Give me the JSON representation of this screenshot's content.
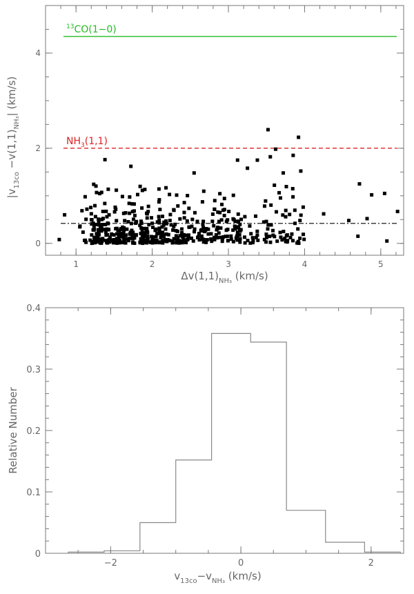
{
  "chart_data": [
    {
      "type": "scatter",
      "xlabel": {
        "main": "Δv(1,1)",
        "sub": "NH₃",
        "unit": " (km/s)"
      },
      "ylabel": {
        "l1": "|v",
        "s1": "13co",
        "m": " −v(1,1)",
        "s2": "NH₃",
        "r": "|  (km/s)"
      },
      "xlim": [
        0.6,
        5.3
      ],
      "ylim": [
        -0.25,
        5.0
      ],
      "xticks": [
        1,
        2,
        3,
        4,
        5
      ],
      "yticks": [
        0,
        2,
        4
      ],
      "reference_lines": [
        {
          "label_sup": "13",
          "label": "CO(1−0)",
          "y": 4.35,
          "color": "#22bb22",
          "style": "solid"
        },
        {
          "label": "NH",
          "label_sub": "3",
          "label_rest": "(1,1)",
          "y": 2.0,
          "color": "#dd2222",
          "style": "dashed"
        },
        {
          "y": 0.42,
          "color": "#000000",
          "style": "dashdot"
        }
      ],
      "points_seed": 20240607,
      "n_points": 520,
      "outliers": [
        [
          3.52,
          2.39
        ],
        [
          3.92,
          2.23
        ],
        [
          3.62,
          1.98
        ],
        [
          3.55,
          1.82
        ],
        [
          3.85,
          1.85
        ],
        [
          3.38,
          1.75
        ],
        [
          3.12,
          1.75
        ],
        [
          3.25,
          1.58
        ],
        [
          3.72,
          1.48
        ],
        [
          2.55,
          1.48
        ],
        [
          3.95,
          1.52
        ],
        [
          1.72,
          1.62
        ],
        [
          1.38,
          1.76
        ],
        [
          4.72,
          1.25
        ],
        [
          4.88,
          1.02
        ],
        [
          5.05,
          1.05
        ],
        [
          5.22,
          0.67
        ],
        [
          4.82,
          0.52
        ],
        [
          4.25,
          0.62
        ],
        [
          4.58,
          0.48
        ],
        [
          5.08,
          0.05
        ],
        [
          4.7,
          0.15
        ],
        [
          0.78,
          0.08
        ],
        [
          0.85,
          0.6
        ],
        [
          1.12,
          0.98
        ]
      ]
    },
    {
      "type": "histogram",
      "ylabel": "Relative Number",
      "xlabel": {
        "main": "v",
        "s1": "13co",
        "m": "−v",
        "s2": "NH₃",
        "unit": " (km/s)"
      },
      "xlim": [
        -3.0,
        2.5
      ],
      "ylim": [
        0,
        0.4
      ],
      "xticks": [
        -2,
        0,
        2
      ],
      "yticks": [
        0,
        0.1,
        0.2,
        0.3,
        0.4
      ],
      "bin_edges": [
        -2.65,
        -2.1,
        -1.55,
        -1.0,
        -0.45,
        0.15,
        0.7,
        1.3,
        1.9,
        2.45
      ],
      "values": [
        0.002,
        0.004,
        0.05,
        0.152,
        0.358,
        0.344,
        0.07,
        0.018,
        0.002
      ]
    }
  ]
}
